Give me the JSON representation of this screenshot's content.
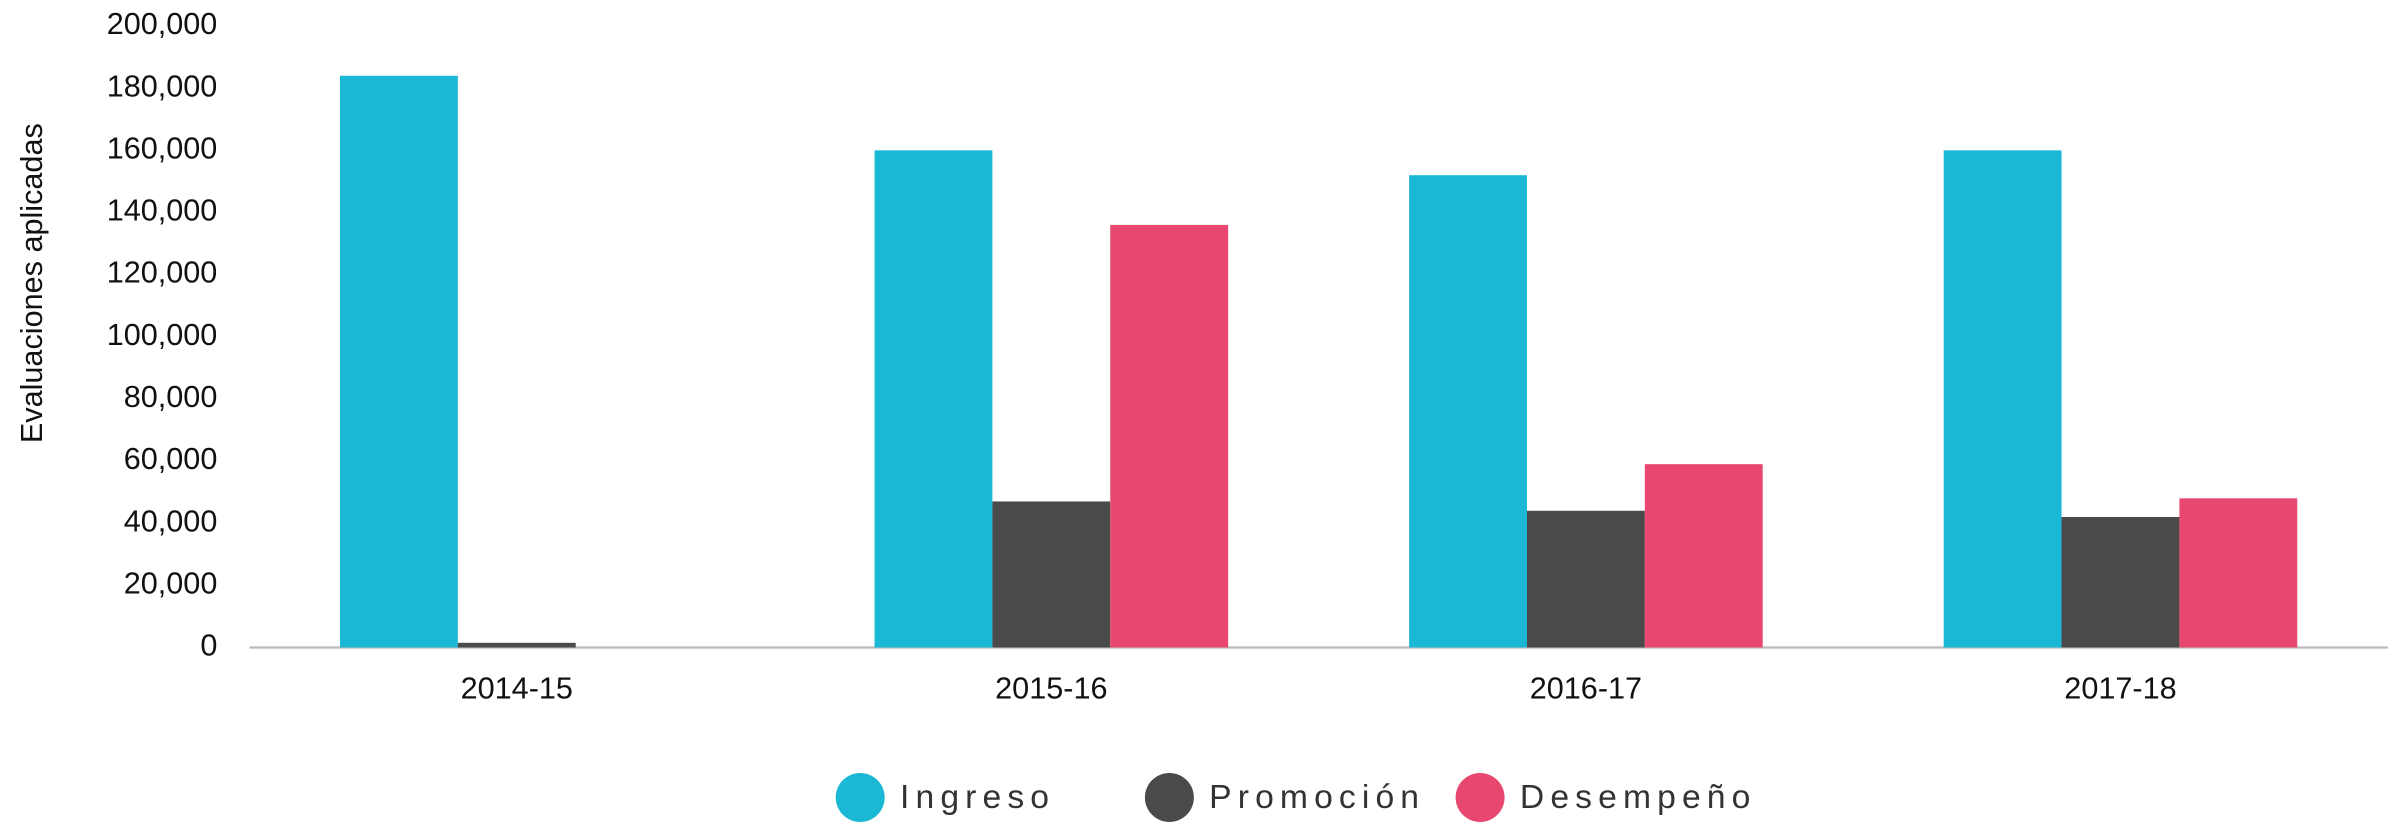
{
  "chart_data": {
    "type": "bar",
    "ylabel": "Evaluaciones aplicadas",
    "categories": [
      "2014-15",
      "2015-16",
      "2016-17",
      "2017-18"
    ],
    "series": [
      {
        "name": "Ingreso",
        "color": "#1bb8d6",
        "values": [
          184000,
          160000,
          152000,
          160000
        ]
      },
      {
        "name": "Promoción",
        "color": "#4a4a4a",
        "values": [
          1500,
          47000,
          44000,
          42000
        ]
      },
      {
        "name": "Desempeño",
        "color": "#e8486f",
        "values": [
          null,
          136000,
          59000,
          48000
        ]
      }
    ],
    "ylim": [
      0,
      200000
    ],
    "yticks": [
      0,
      {
        "value": 20000,
        "label": "20,000"
      },
      {
        "value": 40000,
        "label": "40,000"
      },
      {
        "value": 60000,
        "label": "60,000"
      },
      {
        "value": 80000,
        "label": "80,000"
      },
      {
        "value": 100000,
        "label": "100,000"
      },
      {
        "value": 120000,
        "label": "120,000"
      },
      {
        "value": 140000,
        "label": "140,000"
      },
      {
        "value": 160000,
        "label": "160,000"
      },
      {
        "value": 180000,
        "label": "180,000"
      },
      {
        "value": 200000,
        "label": "200,000"
      }
    ],
    "legend": "bottom"
  }
}
